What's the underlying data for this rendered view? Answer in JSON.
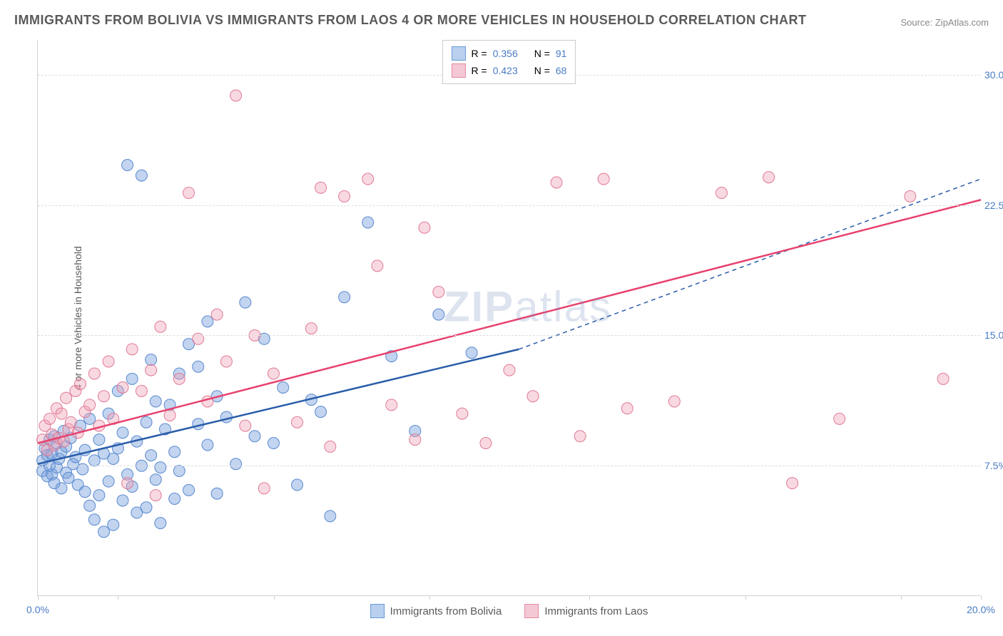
{
  "title": "IMMIGRANTS FROM BOLIVIA VS IMMIGRANTS FROM LAOS 4 OR MORE VEHICLES IN HOUSEHOLD CORRELATION CHART",
  "source": "Source: ZipAtlas.com",
  "ylabel": "4 or more Vehicles in Household",
  "watermark_bold": "ZIP",
  "watermark_light": "atlas",
  "chart": {
    "type": "scatter",
    "xlim": [
      0,
      20
    ],
    "ylim": [
      0,
      32
    ],
    "xtick_positions": [
      0,
      1.7,
      5.0,
      8.3,
      11.7,
      15.0,
      18.3,
      20
    ],
    "xtick_labels": {
      "0": "0.0%",
      "20": "20.0%"
    },
    "ytick_positions": [
      7.5,
      15.0,
      22.5,
      30.0
    ],
    "ytick_labels": [
      "7.5%",
      "15.0%",
      "22.5%",
      "30.0%"
    ],
    "xtick_color": "#4a7cc4",
    "ytick_color": "#4a7cc4",
    "grid_color": "#dddddd",
    "background_color": "#ffffff",
    "label_fontsize": 14
  },
  "series": [
    {
      "name": "Immigrants from Bolivia",
      "color_fill": "rgba(120,160,220,0.45)",
      "color_stroke": "#5a8ad0",
      "swatch_fill": "#b8d0ee",
      "swatch_border": "#6a9ad8",
      "line_color": "#2a5daa",
      "line_dash_extend": true,
      "r_value": "0.356",
      "n_value": "91",
      "regression": {
        "x1": 0,
        "y1": 7.6,
        "x2_solid": 10.2,
        "y2_solid": 14.2,
        "x2_dash": 20,
        "y2_dash": 24.0
      },
      "points": [
        [
          0.1,
          7.2
        ],
        [
          0.1,
          7.8
        ],
        [
          0.15,
          8.5
        ],
        [
          0.2,
          6.9
        ],
        [
          0.2,
          8.1
        ],
        [
          0.25,
          7.5
        ],
        [
          0.25,
          9.0
        ],
        [
          0.3,
          7.0
        ],
        [
          0.3,
          8.2
        ],
        [
          0.35,
          6.5
        ],
        [
          0.35,
          9.2
        ],
        [
          0.4,
          7.4
        ],
        [
          0.4,
          8.8
        ],
        [
          0.45,
          7.9
        ],
        [
          0.5,
          6.2
        ],
        [
          0.5,
          8.3
        ],
        [
          0.55,
          9.5
        ],
        [
          0.6,
          7.1
        ],
        [
          0.6,
          8.6
        ],
        [
          0.65,
          6.8
        ],
        [
          0.7,
          9.1
        ],
        [
          0.75,
          7.6
        ],
        [
          0.8,
          8.0
        ],
        [
          0.85,
          6.4
        ],
        [
          0.9,
          9.8
        ],
        [
          0.95,
          7.3
        ],
        [
          1.0,
          8.4
        ],
        [
          1.0,
          6.0
        ],
        [
          1.1,
          5.2
        ],
        [
          1.1,
          10.2
        ],
        [
          1.2,
          7.8
        ],
        [
          1.2,
          4.4
        ],
        [
          1.3,
          9.0
        ],
        [
          1.3,
          5.8
        ],
        [
          1.4,
          8.2
        ],
        [
          1.4,
          3.7
        ],
        [
          1.5,
          10.5
        ],
        [
          1.5,
          6.6
        ],
        [
          1.6,
          7.9
        ],
        [
          1.6,
          4.1
        ],
        [
          1.7,
          11.8
        ],
        [
          1.7,
          8.5
        ],
        [
          1.8,
          5.5
        ],
        [
          1.8,
          9.4
        ],
        [
          1.9,
          7.0
        ],
        [
          1.9,
          24.8
        ],
        [
          2.0,
          12.5
        ],
        [
          2.0,
          6.3
        ],
        [
          2.1,
          8.9
        ],
        [
          2.1,
          4.8
        ],
        [
          2.2,
          24.2
        ],
        [
          2.2,
          7.5
        ],
        [
          2.3,
          10.0
        ],
        [
          2.3,
          5.1
        ],
        [
          2.4,
          13.6
        ],
        [
          2.4,
          8.1
        ],
        [
          2.5,
          6.7
        ],
        [
          2.5,
          11.2
        ],
        [
          2.6,
          7.4
        ],
        [
          2.6,
          4.2
        ],
        [
          2.7,
          9.6
        ],
        [
          2.8,
          11.0
        ],
        [
          2.9,
          8.3
        ],
        [
          2.9,
          5.6
        ],
        [
          3.0,
          12.8
        ],
        [
          3.0,
          7.2
        ],
        [
          3.2,
          14.5
        ],
        [
          3.2,
          6.1
        ],
        [
          3.4,
          9.9
        ],
        [
          3.4,
          13.2
        ],
        [
          3.6,
          15.8
        ],
        [
          3.6,
          8.7
        ],
        [
          3.8,
          11.5
        ],
        [
          3.8,
          5.9
        ],
        [
          4.0,
          10.3
        ],
        [
          4.2,
          7.6
        ],
        [
          4.4,
          16.9
        ],
        [
          4.6,
          9.2
        ],
        [
          4.8,
          14.8
        ],
        [
          5.0,
          8.8
        ],
        [
          5.2,
          12.0
        ],
        [
          5.5,
          6.4
        ],
        [
          5.8,
          11.3
        ],
        [
          6.0,
          10.6
        ],
        [
          6.2,
          4.6
        ],
        [
          6.5,
          17.2
        ],
        [
          7.0,
          21.5
        ],
        [
          7.5,
          13.8
        ],
        [
          8.0,
          9.5
        ],
        [
          8.5,
          16.2
        ],
        [
          9.2,
          14.0
        ]
      ]
    },
    {
      "name": "Immigrants from Laos",
      "color_fill": "rgba(240,160,180,0.40)",
      "color_stroke": "#e07a95",
      "swatch_fill": "#f4c8d4",
      "swatch_border": "#e48aa0",
      "line_color": "#e8416d",
      "line_dash_extend": false,
      "r_value": "0.423",
      "n_value": "68",
      "regression": {
        "x1": 0,
        "y1": 8.8,
        "x2_solid": 20,
        "y2_solid": 22.8
      },
      "points": [
        [
          0.1,
          9.0
        ],
        [
          0.15,
          9.8
        ],
        [
          0.2,
          8.4
        ],
        [
          0.25,
          10.2
        ],
        [
          0.3,
          9.3
        ],
        [
          0.35,
          8.7
        ],
        [
          0.4,
          10.8
        ],
        [
          0.45,
          9.1
        ],
        [
          0.5,
          10.5
        ],
        [
          0.55,
          8.9
        ],
        [
          0.6,
          11.4
        ],
        [
          0.65,
          9.6
        ],
        [
          0.7,
          10.0
        ],
        [
          0.8,
          11.8
        ],
        [
          0.85,
          9.4
        ],
        [
          0.9,
          12.2
        ],
        [
          1.0,
          10.6
        ],
        [
          1.1,
          11.0
        ],
        [
          1.2,
          12.8
        ],
        [
          1.3,
          9.8
        ],
        [
          1.4,
          11.5
        ],
        [
          1.5,
          13.5
        ],
        [
          1.6,
          10.2
        ],
        [
          1.8,
          12.0
        ],
        [
          1.9,
          6.5
        ],
        [
          2.0,
          14.2
        ],
        [
          2.2,
          11.8
        ],
        [
          2.4,
          13.0
        ],
        [
          2.5,
          5.8
        ],
        [
          2.6,
          15.5
        ],
        [
          2.8,
          10.4
        ],
        [
          3.0,
          12.5
        ],
        [
          3.2,
          23.2
        ],
        [
          3.4,
          14.8
        ],
        [
          3.6,
          11.2
        ],
        [
          3.8,
          16.2
        ],
        [
          4.0,
          13.5
        ],
        [
          4.2,
          28.8
        ],
        [
          4.4,
          9.8
        ],
        [
          4.6,
          15.0
        ],
        [
          4.8,
          6.2
        ],
        [
          5.0,
          12.8
        ],
        [
          5.5,
          10.0
        ],
        [
          5.8,
          15.4
        ],
        [
          6.0,
          23.5
        ],
        [
          6.2,
          8.6
        ],
        [
          6.5,
          23.0
        ],
        [
          7.0,
          24.0
        ],
        [
          7.2,
          19.0
        ],
        [
          7.5,
          11.0
        ],
        [
          8.0,
          9.0
        ],
        [
          8.2,
          21.2
        ],
        [
          8.5,
          17.5
        ],
        [
          9.0,
          10.5
        ],
        [
          9.5,
          8.8
        ],
        [
          10.0,
          13.0
        ],
        [
          10.5,
          11.5
        ],
        [
          11.0,
          23.8
        ],
        [
          11.5,
          9.2
        ],
        [
          12.0,
          24.0
        ],
        [
          12.5,
          10.8
        ],
        [
          13.5,
          11.2
        ],
        [
          14.5,
          23.2
        ],
        [
          15.5,
          24.1
        ],
        [
          16.0,
          6.5
        ],
        [
          17.0,
          10.2
        ],
        [
          18.5,
          23.0
        ],
        [
          19.2,
          12.5
        ]
      ]
    }
  ],
  "legend_top": {
    "r_label": "R =",
    "n_label": "N ="
  }
}
